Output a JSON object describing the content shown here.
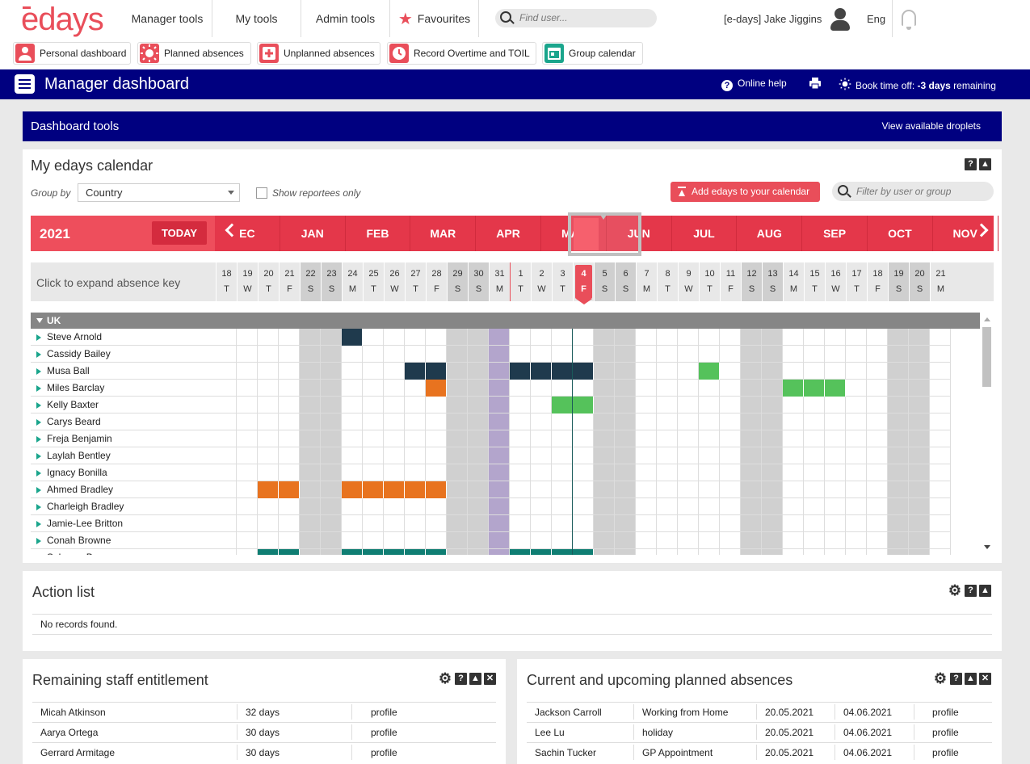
{
  "logo": "edays",
  "nav": {
    "manager_tools": "Manager tools",
    "my_tools": "My tools",
    "admin_tools": "Admin tools",
    "favourites": "Favourites",
    "search_placeholder": "Find user...",
    "user": "[e-days] Jake Jiggins",
    "language": "Eng"
  },
  "quick_links": [
    {
      "label": "Personal dashboard",
      "icon": "person-icon"
    },
    {
      "label": "Planned absences",
      "icon": "sun-icon"
    },
    {
      "label": "Unplanned absences",
      "icon": "plus-icon"
    },
    {
      "label": "Record Overtime and TOIL",
      "icon": "clock-icon"
    },
    {
      "label": "Group calendar",
      "icon": "calendar-icon"
    }
  ],
  "header": {
    "title": "Manager dashboard",
    "online_help": "Online help",
    "book_time_prefix": "Book time off: ",
    "book_time_days": "-3 days",
    "book_time_suffix": " remaining"
  },
  "dashboard_tools": {
    "title": "Dashboard tools",
    "link": "View available droplets"
  },
  "calendar": {
    "title": "My edays calendar",
    "group_by_label": "Group by",
    "group_by_value": "Country",
    "show_reportees": "Show reportees only",
    "add_button": "Add edays to your calendar",
    "filter_placeholder": "Filter by user or group",
    "year": "2021",
    "today_label": "TODAY",
    "months": [
      "EC",
      "JAN",
      "FEB",
      "MAR",
      "APR",
      "MAY",
      "JUN",
      "JUL",
      "AUG",
      "SEP",
      "OCT",
      "NOV"
    ],
    "absence_key": "Click to expand absence key",
    "days": [
      {
        "n": "18",
        "w": "T"
      },
      {
        "n": "19",
        "w": "W"
      },
      {
        "n": "20",
        "w": "T"
      },
      {
        "n": "21",
        "w": "F"
      },
      {
        "n": "22",
        "w": "S"
      },
      {
        "n": "23",
        "w": "S"
      },
      {
        "n": "24",
        "w": "M"
      },
      {
        "n": "25",
        "w": "T"
      },
      {
        "n": "26",
        "w": "W"
      },
      {
        "n": "27",
        "w": "T"
      },
      {
        "n": "28",
        "w": "F"
      },
      {
        "n": "29",
        "w": "S"
      },
      {
        "n": "30",
        "w": "S"
      },
      {
        "n": "31",
        "w": "M"
      },
      {
        "n": "1",
        "w": "T"
      },
      {
        "n": "2",
        "w": "W"
      },
      {
        "n": "3",
        "w": "T"
      },
      {
        "n": "4",
        "w": "F"
      },
      {
        "n": "5",
        "w": "S"
      },
      {
        "n": "6",
        "w": "S"
      },
      {
        "n": "7",
        "w": "M"
      },
      {
        "n": "8",
        "w": "T"
      },
      {
        "n": "9",
        "w": "W"
      },
      {
        "n": "10",
        "w": "T"
      },
      {
        "n": "11",
        "w": "F"
      },
      {
        "n": "12",
        "w": "S"
      },
      {
        "n": "13",
        "w": "S"
      },
      {
        "n": "14",
        "w": "M"
      },
      {
        "n": "15",
        "w": "T"
      },
      {
        "n": "16",
        "w": "W"
      },
      {
        "n": "17",
        "w": "T"
      },
      {
        "n": "18",
        "w": "F"
      },
      {
        "n": "19",
        "w": "S"
      },
      {
        "n": "20",
        "w": "S"
      },
      {
        "n": "21",
        "w": "M"
      }
    ],
    "group_name": "UK",
    "people": [
      "Steve Arnold",
      "Cassidy Bailey",
      "Musa Ball",
      "Miles Barclay",
      "Kelly Baxter",
      "Carys Beard",
      "Freja Benjamin",
      "Laylah Bentley",
      "Ignacy Bonilla",
      "Ahmed Bradley",
      "Charleigh Bradley",
      "Jamie-Lee Britton",
      "Conah Browne",
      "Saharaa Bruce"
    ],
    "colors": {
      "navy": "#1f3a4d",
      "orange": "#e8731f",
      "green": "#55c25b",
      "teal": "#0f7e73"
    }
  },
  "action_list": {
    "title": "Action list",
    "empty": "No records found."
  },
  "entitlement": {
    "title": "Remaining staff entitlement",
    "rows": [
      {
        "name": "Micah Atkinson",
        "days": "32 days",
        "link": "profile"
      },
      {
        "name": "Aarya Ortega",
        "days": "30 days",
        "link": "profile"
      },
      {
        "name": "Gerrard Armitage",
        "days": "30 days",
        "link": "profile"
      }
    ]
  },
  "upcoming": {
    "title": "Current and upcoming planned absences",
    "rows": [
      {
        "name": "Jackson Carroll",
        "type": "Working from Home",
        "from": "20.05.2021",
        "to": "04.06.2021",
        "link": "profile"
      },
      {
        "name": "Lee Lu",
        "type": "holiday",
        "from": "20.05.2021",
        "to": "04.06.2021",
        "link": "profile"
      },
      {
        "name": "Sachin Tucker",
        "type": "GP Appointment",
        "from": "20.05.2021",
        "to": "04.06.2021",
        "link": "profile"
      }
    ]
  }
}
